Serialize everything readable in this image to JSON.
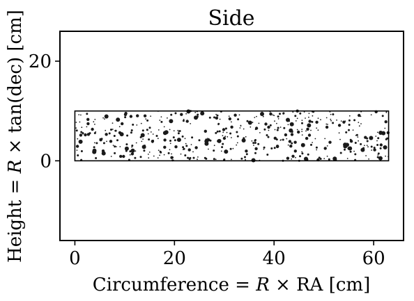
{
  "chart_data": {
    "type": "scatter",
    "title": "Side",
    "xlabel_prefix": "Circumference = ",
    "xlabel_var": "R",
    "xlabel_suffix": " × RA [cm]",
    "ylabel_prefix": "Height = ",
    "ylabel_var": "R",
    "ylabel_suffix": " × tan(dec) [cm]",
    "xlim": [
      -3,
      66
    ],
    "ylim": [
      -16,
      26
    ],
    "x_ticks": [
      0,
      20,
      40,
      60
    ],
    "y_ticks": [
      0,
      20
    ],
    "x_tick_labels": [
      "0",
      "20",
      "40",
      "60"
    ],
    "y_tick_labels": [
      "0",
      "20"
    ],
    "grid": false,
    "colors": {
      "points": "#1a1a1a",
      "frame": "#000000"
    },
    "region": {
      "x": [
        0,
        63
      ],
      "y": [
        0,
        10
      ]
    },
    "points": {
      "count": 520,
      "x_range": [
        0,
        63
      ],
      "y_range": [
        0,
        10
      ]
    }
  }
}
